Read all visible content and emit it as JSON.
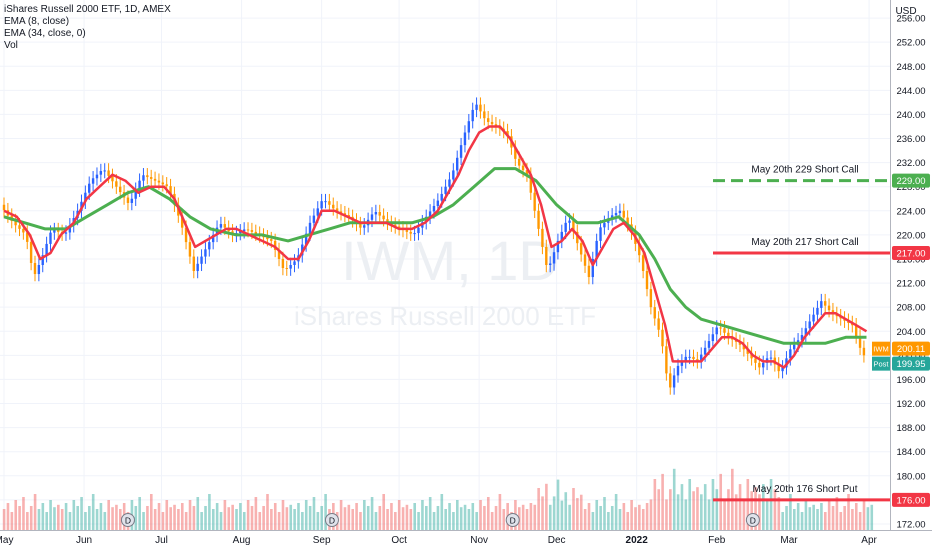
{
  "chart_data": {
    "type": "line",
    "title": "iShares Russell 2000 ETF, 1D, AMEX",
    "indicators": [
      "EMA (8, close)",
      "EMA (34, close, 0)",
      "Vol"
    ],
    "watermark": {
      "symbol": "IWM, 1D",
      "name": "iShares Russell 2000 ETF"
    },
    "currency": "USD",
    "y_axis": {
      "ticks": [
        172,
        176,
        180,
        184,
        188,
        192,
        196,
        200,
        204,
        208,
        212,
        216,
        220,
        224,
        228,
        232,
        236,
        240,
        244,
        248,
        252,
        256
      ],
      "tick_labels": [
        "172.00",
        "176.00",
        "180.00",
        "184.00",
        "188.00",
        "192.00",
        "196.00",
        "200.00",
        "204.00",
        "208.00",
        "212.00",
        "216.00",
        "220.00",
        "224.00",
        "228.00",
        "232.00",
        "236.00",
        "240.00",
        "244.00",
        "248.00",
        "252.00",
        "256.00"
      ],
      "range": [
        171,
        259
      ]
    },
    "x_axis": {
      "labels": [
        "May",
        "Jun",
        "Jul",
        "Aug",
        "Sep",
        "Oct",
        "Nov",
        "Dec",
        "2022",
        "Feb",
        "Mar",
        "Apr"
      ],
      "label_days": [
        0,
        31,
        61,
        92,
        123,
        153,
        184,
        214,
        245,
        276,
        304,
        335
      ],
      "range_days": [
        0,
        340
      ]
    },
    "price_series": {
      "name": "IWM",
      "points": [
        [
          0,
          225
        ],
        [
          5,
          222
        ],
        [
          10,
          220
        ],
        [
          13,
          213
        ],
        [
          16,
          216
        ],
        [
          20,
          221
        ],
        [
          25,
          220
        ],
        [
          30,
          224
        ],
        [
          35,
          229
        ],
        [
          40,
          231
        ],
        [
          45,
          228
        ],
        [
          50,
          225
        ],
        [
          55,
          230
        ],
        [
          60,
          229
        ],
        [
          65,
          228
        ],
        [
          70,
          222
        ],
        [
          75,
          214
        ],
        [
          80,
          218
        ],
        [
          85,
          222
        ],
        [
          90,
          220
        ],
        [
          95,
          221
        ],
        [
          100,
          220
        ],
        [
          105,
          219
        ],
        [
          110,
          214
        ],
        [
          115,
          216
        ],
        [
          120,
          222
        ],
        [
          125,
          226
        ],
        [
          130,
          224
        ],
        [
          135,
          223
        ],
        [
          140,
          221
        ],
        [
          145,
          224
        ],
        [
          150,
          222
        ],
        [
          155,
          221
        ],
        [
          160,
          220
        ],
        [
          165,
          223
        ],
        [
          170,
          226
        ],
        [
          175,
          230
        ],
        [
          180,
          237
        ],
        [
          184,
          242
        ],
        [
          188,
          239
        ],
        [
          192,
          238
        ],
        [
          196,
          237
        ],
        [
          200,
          232
        ],
        [
          204,
          230
        ],
        [
          208,
          222
        ],
        [
          212,
          214
        ],
        [
          216,
          219
        ],
        [
          220,
          223
        ],
        [
          224,
          218
        ],
        [
          228,
          213
        ],
        [
          232,
          221
        ],
        [
          236,
          223
        ],
        [
          240,
          224
        ],
        [
          244,
          221
        ],
        [
          248,
          216
        ],
        [
          252,
          208
        ],
        [
          256,
          203
        ],
        [
          259,
          194
        ],
        [
          262,
          198
        ],
        [
          266,
          200
        ],
        [
          270,
          199
        ],
        [
          274,
          202
        ],
        [
          278,
          205
        ],
        [
          282,
          203
        ],
        [
          286,
          202
        ],
        [
          290,
          200
        ],
        [
          294,
          198
        ],
        [
          298,
          200
        ],
        [
          302,
          197
        ],
        [
          306,
          201
        ],
        [
          310,
          203
        ],
        [
          314,
          206
        ],
        [
          318,
          209
        ],
        [
          322,
          207
        ],
        [
          326,
          206
        ],
        [
          330,
          205
        ],
        [
          334,
          200
        ]
      ]
    },
    "ema_8": {
      "name": "EMA (8, close)",
      "color": "#f23645",
      "points": [
        [
          0,
          224
        ],
        [
          5,
          223
        ],
        [
          10,
          220
        ],
        [
          14,
          216
        ],
        [
          18,
          217
        ],
        [
          22,
          220
        ],
        [
          27,
          222
        ],
        [
          32,
          226
        ],
        [
          37,
          228
        ],
        [
          42,
          230
        ],
        [
          47,
          229
        ],
        [
          52,
          227
        ],
        [
          57,
          228
        ],
        [
          62,
          228
        ],
        [
          66,
          226
        ],
        [
          70,
          222
        ],
        [
          74,
          218
        ],
        [
          78,
          219
        ],
        [
          82,
          220
        ],
        [
          86,
          221
        ],
        [
          90,
          221
        ],
        [
          95,
          220
        ],
        [
          100,
          219
        ],
        [
          105,
          218
        ],
        [
          110,
          216
        ],
        [
          114,
          216
        ],
        [
          118,
          219
        ],
        [
          123,
          224
        ],
        [
          128,
          224
        ],
        [
          133,
          223
        ],
        [
          138,
          222
        ],
        [
          143,
          222
        ],
        [
          148,
          222
        ],
        [
          153,
          221
        ],
        [
          158,
          221
        ],
        [
          163,
          222
        ],
        [
          168,
          224
        ],
        [
          172,
          227
        ],
        [
          176,
          230
        ],
        [
          180,
          234
        ],
        [
          184,
          237
        ],
        [
          188,
          238
        ],
        [
          192,
          238
        ],
        [
          196,
          236
        ],
        [
          200,
          233
        ],
        [
          204,
          230
        ],
        [
          208,
          225
        ],
        [
          212,
          218
        ],
        [
          216,
          219
        ],
        [
          220,
          221
        ],
        [
          224,
          219
        ],
        [
          228,
          215
        ],
        [
          232,
          218
        ],
        [
          236,
          221
        ],
        [
          240,
          222
        ],
        [
          244,
          220
        ],
        [
          248,
          217
        ],
        [
          252,
          211
        ],
        [
          256,
          205
        ],
        [
          259,
          199
        ],
        [
          262,
          199
        ],
        [
          266,
          199
        ],
        [
          270,
          199
        ],
        [
          274,
          201
        ],
        [
          278,
          203
        ],
        [
          282,
          203
        ],
        [
          286,
          202
        ],
        [
          290,
          200
        ],
        [
          294,
          199
        ],
        [
          298,
          199
        ],
        [
          302,
          198
        ],
        [
          306,
          200
        ],
        [
          310,
          203
        ],
        [
          314,
          205
        ],
        [
          318,
          207
        ],
        [
          322,
          207
        ],
        [
          326,
          206
        ],
        [
          330,
          205
        ],
        [
          334,
          204
        ]
      ]
    },
    "ema_34": {
      "name": "EMA (34, close, 0)",
      "color": "#4caf50",
      "points": [
        [
          0,
          223
        ],
        [
          8,
          222
        ],
        [
          16,
          221
        ],
        [
          24,
          221
        ],
        [
          32,
          223
        ],
        [
          40,
          225
        ],
        [
          48,
          227
        ],
        [
          56,
          228
        ],
        [
          64,
          226
        ],
        [
          72,
          223
        ],
        [
          80,
          221
        ],
        [
          90,
          220
        ],
        [
          100,
          220
        ],
        [
          110,
          219
        ],
        [
          118,
          220
        ],
        [
          126,
          221
        ],
        [
          134,
          222
        ],
        [
          142,
          222
        ],
        [
          150,
          222
        ],
        [
          158,
          222
        ],
        [
          166,
          223
        ],
        [
          174,
          225
        ],
        [
          182,
          228
        ],
        [
          190,
          231
        ],
        [
          198,
          231
        ],
        [
          206,
          229
        ],
        [
          214,
          225
        ],
        [
          222,
          222
        ],
        [
          230,
          222
        ],
        [
          238,
          223
        ],
        [
          246,
          220
        ],
        [
          252,
          216
        ],
        [
          258,
          211
        ],
        [
          264,
          208
        ],
        [
          270,
          206
        ],
        [
          278,
          205
        ],
        [
          286,
          204
        ],
        [
          294,
          203
        ],
        [
          302,
          202
        ],
        [
          310,
          202
        ],
        [
          318,
          202
        ],
        [
          326,
          203
        ],
        [
          334,
          203
        ]
      ]
    },
    "volume_bars_days_step": 1.5,
    "volume_pattern": [
      0.35,
      0.45,
      0.3,
      0.5,
      0.4,
      0.55,
      0.3,
      0.4,
      0.6,
      0.35,
      0.45,
      0.3,
      0.5,
      0.38,
      0.42
    ],
    "levels": [
      {
        "label": "May 20th 229 Short Call",
        "value": 229,
        "tag": "229.00",
        "color": "#4caf50",
        "dashed": true
      },
      {
        "label": "May 20th 217 Short Call",
        "value": 217,
        "tag": "217.00",
        "color": "#f23645",
        "dashed": false
      },
      {
        "label": "May 20th 176 Short Put",
        "value": 176,
        "tag": "176.00",
        "color": "#f23645",
        "dashed": false
      }
    ],
    "price_tags": [
      {
        "label": "IWM",
        "value": 200.11,
        "text": "200.11",
        "color": "#ff9800"
      },
      {
        "label": "Post",
        "value": 199.95,
        "text": "199.95",
        "color": "#26a69a"
      }
    ],
    "dividend_markers": {
      "label": "D",
      "days": [
        48,
        127,
        197,
        290
      ]
    }
  }
}
